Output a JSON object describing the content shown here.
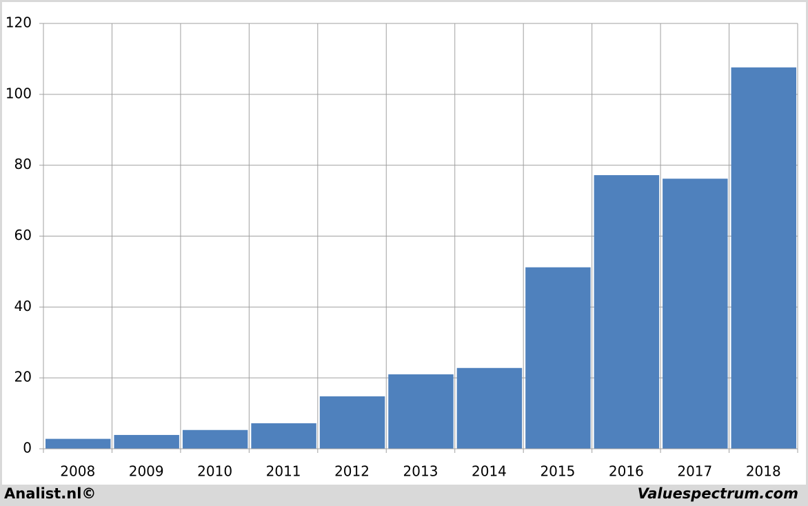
{
  "chart_data": {
    "type": "bar",
    "categories": [
      "2008",
      "2009",
      "2010",
      "2011",
      "2012",
      "2013",
      "2014",
      "2015",
      "2016",
      "2017",
      "2018"
    ],
    "values": [
      2.8,
      3.9,
      5.3,
      7.2,
      14.8,
      21.0,
      22.8,
      51.2,
      77.2,
      76.2,
      107.6
    ],
    "color": "#4f81bd",
    "ylim": [
      0,
      120
    ],
    "yticks": [
      0,
      20,
      40,
      60,
      80,
      100,
      120
    ],
    "grid": true,
    "credit": "Analist.nl©",
    "source": "Valuespectrum.com"
  }
}
